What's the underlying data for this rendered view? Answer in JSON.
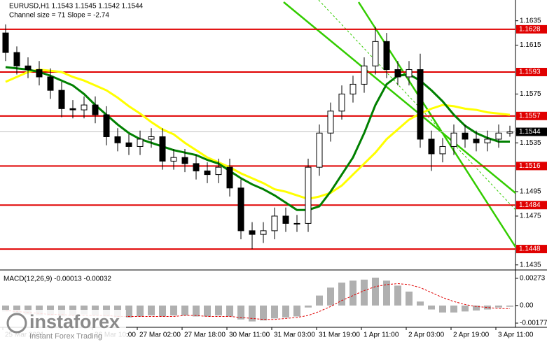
{
  "chart_data": [
    {
      "type": "candlestick",
      "title": "EURUSD,H1  1.1543 1.1545 1.1542 1.1544",
      "subtitle": "Channel size = 71 Slope = -2.74",
      "x": [
        2,
        6,
        10,
        14,
        18,
        22,
        26,
        30,
        34,
        38,
        42,
        46,
        50,
        54,
        58,
        62,
        66,
        70,
        74,
        78,
        82,
        86,
        90,
        94,
        98,
        102,
        106,
        110,
        114,
        118,
        122,
        126,
        130,
        134,
        138,
        142,
        146,
        150,
        154,
        158,
        162,
        166,
        170,
        174,
        178,
        182
      ],
      "open": [
        1.1625,
        1.1609,
        1.1598,
        1.1595,
        1.1589,
        1.1578,
        1.1563,
        1.1562,
        1.1566,
        1.1558,
        1.154,
        1.1535,
        1.1532,
        1.1538,
        1.154,
        1.152,
        1.1523,
        1.1518,
        1.1512,
        1.1509,
        1.1515,
        1.1498,
        1.1463,
        1.146,
        1.1463,
        1.1475,
        1.1469,
        1.1469,
        1.1515,
        1.1543,
        1.1561,
        1.1575,
        1.1583,
        1.1598,
        1.1618,
        1.1595,
        1.1589,
        1.1595,
        1.1538,
        1.1526,
        1.1532,
        1.1543,
        1.1538,
        1.1535,
        1.1538,
        1.1543
      ],
      "high": [
        1.1632,
        1.1614,
        1.1605,
        1.1602,
        1.1596,
        1.1585,
        1.157,
        1.1573,
        1.1573,
        1.1565,
        1.1547,
        1.1542,
        1.1545,
        1.1547,
        1.1547,
        1.153,
        1.153,
        1.1525,
        1.1519,
        1.1522,
        1.1522,
        1.1505,
        1.147,
        1.147,
        1.1482,
        1.1482,
        1.1476,
        1.1522,
        1.155,
        1.1568,
        1.1582,
        1.159,
        1.1605,
        1.163,
        1.1625,
        1.1602,
        1.1602,
        1.1608,
        1.1545,
        1.1539,
        1.155,
        1.155,
        1.1545,
        1.1545,
        1.155,
        1.1549
      ],
      "low": [
        1.1602,
        1.1591,
        1.1588,
        1.1582,
        1.1571,
        1.1556,
        1.1555,
        1.1555,
        1.1551,
        1.1533,
        1.1528,
        1.1525,
        1.1525,
        1.1531,
        1.1513,
        1.1513,
        1.1511,
        1.1505,
        1.1502,
        1.1502,
        1.1491,
        1.1456,
        1.1448,
        1.1453,
        1.1456,
        1.1462,
        1.1462,
        1.1462,
        1.1508,
        1.1536,
        1.1554,
        1.1568,
        1.1576,
        1.1591,
        1.1588,
        1.1582,
        1.1582,
        1.1531,
        1.1512,
        1.1519,
        1.1525,
        1.1531,
        1.1528,
        1.1528,
        1.1531,
        1.154
      ],
      "close": [
        1.1609,
        1.1598,
        1.1595,
        1.1589,
        1.1578,
        1.1563,
        1.1562,
        1.1566,
        1.1558,
        1.154,
        1.1535,
        1.1532,
        1.1538,
        1.154,
        1.152,
        1.1523,
        1.1518,
        1.1512,
        1.1509,
        1.1515,
        1.1498,
        1.1463,
        1.146,
        1.1463,
        1.1475,
        1.1469,
        1.1469,
        1.1515,
        1.1543,
        1.1561,
        1.1575,
        1.1583,
        1.1598,
        1.1618,
        1.1595,
        1.1589,
        1.1595,
        1.1538,
        1.1526,
        1.1532,
        1.1543,
        1.1538,
        1.1535,
        1.1538,
        1.1543,
        1.1544
      ],
      "lines": [
        {
          "color": "#ffff00",
          "values": [
            1.1585,
            1.1589,
            1.1593,
            1.1595,
            1.1594,
            1.1593,
            1.1589,
            1.1586,
            1.1582,
            1.1578,
            1.1572,
            1.1565,
            1.1559,
            1.1552,
            1.1546,
            1.1542,
            1.1535,
            1.1529,
            1.1523,
            1.1519,
            1.1515,
            1.151,
            1.1506,
            1.1502,
            1.1497,
            1.1495,
            1.1492,
            1.1489,
            1.1491,
            1.1494,
            1.15,
            1.1509,
            1.1518,
            1.1527,
            1.1538,
            1.1546,
            1.1554,
            1.1559,
            1.1563,
            1.1566,
            1.1565,
            1.1563,
            1.1562,
            1.156,
            1.1559,
            1.1558
          ]
        },
        {
          "color": "#008000",
          "values": [
            1.1597,
            1.1596,
            1.1595,
            1.1593,
            1.159,
            1.1586,
            1.1582,
            1.1575,
            1.1566,
            1.1558,
            1.155,
            1.1543,
            1.1538,
            1.1535,
            1.1532,
            1.1529,
            1.1527,
            1.1525,
            1.1521,
            1.1518,
            1.1512,
            1.1506,
            1.1501,
            1.1497,
            1.1492,
            1.1486,
            1.148,
            1.148,
            1.1483,
            1.1495,
            1.1509,
            1.1523,
            1.1543,
            1.1566,
            1.1583,
            1.159,
            1.1591,
            1.1586,
            1.1578,
            1.1569,
            1.1558,
            1.1549,
            1.1543,
            1.1539,
            1.1536,
            1.1536
          ]
        }
      ],
      "levels": [
        {
          "value": 1.1628,
          "color": "#e00000"
        },
        {
          "value": 1.1593,
          "color": "#e00000"
        },
        {
          "value": 1.1557,
          "color": "#e00000"
        },
        {
          "value": 1.1516,
          "color": "#e00000"
        },
        {
          "value": 1.1484,
          "color": "#e00000"
        },
        {
          "value": 1.1448,
          "color": "#e00000"
        }
      ],
      "current": {
        "value": 1.1544,
        "color": "#000000"
      },
      "xlim": [
        0,
        184
      ],
      "ylim": [
        1.1432,
        1.1652
      ],
      "yticks": [
        1.1635,
        1.1615,
        1.1575,
        1.1535,
        1.1495,
        1.1475,
        1.1435
      ],
      "xticks": [
        {
          "value": 1,
          "label": "25 Mar 2021"
        },
        {
          "value": 33,
          "label": "26 Mar 10:00"
        },
        {
          "value": 49,
          "label": "27 Mar 02:00"
        },
        {
          "value": 65,
          "label": "27 Mar 18:00"
        },
        {
          "value": 81,
          "label": "30 Mar 11:00"
        },
        {
          "value": 97,
          "label": "31 Mar 03:00"
        },
        {
          "value": 113,
          "label": "31 Mar 19:00"
        },
        {
          "value": 129,
          "label": "1 Apr 11:00"
        },
        {
          "value": 145,
          "label": "2 Apr 03:00"
        },
        {
          "value": 161,
          "label": "2 Apr 19:00"
        },
        {
          "value": 177,
          "label": "3 Apr 11:00"
        }
      ]
    },
    {
      "type": "macd",
      "title": "MACD(12,26,9) -0.00013 -0.00032",
      "values": [
        -0.0006,
        -0.0008,
        -0.0009,
        -0.001,
        -0.001,
        -0.0011,
        -0.001,
        -0.0009,
        -0.001,
        -0.0011,
        -0.0012,
        -0.0012,
        -0.0011,
        -0.001,
        -0.0011,
        -0.001,
        -0.001,
        -0.0011,
        -0.0011,
        -0.001,
        -0.0011,
        -0.0014,
        -0.0016,
        -0.0015,
        -0.0013,
        -0.0012,
        -0.0011,
        -0.0002,
        0.001,
        0.0018,
        0.0023,
        0.0025,
        0.0026,
        0.0028,
        0.0025,
        0.002,
        0.0014,
        0.0004,
        -0.0004,
        -0.0007,
        -0.0007,
        -0.0006,
        -0.0005,
        -0.0004,
        -0.0002,
        -0.00013
      ],
      "signal": [
        -0.0005,
        -0.0006,
        -0.0007,
        -0.0008,
        -0.0009,
        -0.0009,
        -0.001,
        -0.001,
        -0.001,
        -0.001,
        -0.0011,
        -0.0011,
        -0.0011,
        -0.0011,
        -0.0011,
        -0.0011,
        -0.001,
        -0.001,
        -0.0011,
        -0.0011,
        -0.0011,
        -0.0012,
        -0.0013,
        -0.0014,
        -0.0014,
        -0.0013,
        -0.0012,
        -0.001,
        -0.0006,
        -0.0001,
        0.0005,
        0.001,
        0.0015,
        0.0019,
        0.0021,
        0.0022,
        0.0021,
        0.0018,
        0.0013,
        0.0008,
        0.0004,
        0.0001,
        -0.0001,
        -0.0002,
        -0.0003,
        -0.00032
      ],
      "color": "#b0b0b0",
      "signal_color": "#e00000",
      "ylim": [
        -0.00205,
        0.00336
      ],
      "yticks": [
        0.00273,
        {
          "value": 0,
          "label": "0.00"
        },
        -0.00177
      ]
    }
  ],
  "logo": {
    "name": "instaforex",
    "tagline": "Instant Forex Trading"
  }
}
